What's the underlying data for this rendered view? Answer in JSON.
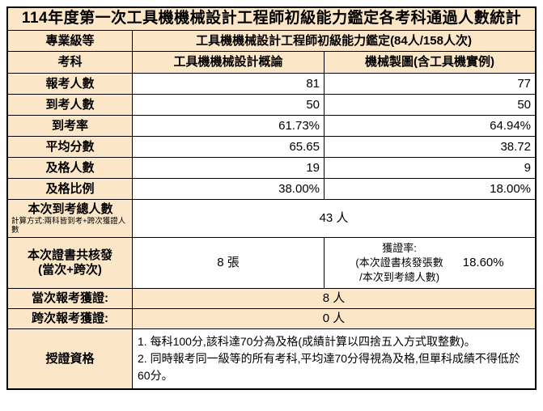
{
  "colors": {
    "header_fill": "#FCE6C8",
    "border": "#000000",
    "cell_fill": "#FFFFFF",
    "text": "#000000"
  },
  "title": "114年度第一次工具機機械設計工程師初級能力鑑定各考科通過人數統計",
  "level_row": {
    "label": "專業級等",
    "value": "工具機機械設計工程師初級能力鑑定(84人/158人次)"
  },
  "subject_row": {
    "label": "考科",
    "col1": "工具機機械設計概論",
    "col2": "機械製圖(含工具機實例)"
  },
  "stat_rows": [
    {
      "label": "報考人數",
      "col1": "81",
      "col2": "77"
    },
    {
      "label": "到考人數",
      "col1": "50",
      "col2": "50"
    },
    {
      "label": "到考率",
      "col1": "61.73%",
      "col2": "64.94%"
    },
    {
      "label": "平均分數",
      "col1": "65.65",
      "col2": "38.72"
    },
    {
      "label": "及格人數",
      "col1": "19",
      "col2": "9"
    },
    {
      "label": "及格比例",
      "col1": "38.00%",
      "col2": "18.00%"
    }
  ],
  "attend_total_row": {
    "label": "本次到考總人數",
    "note": "計算方式:兩科皆到考+跨次獲證人數",
    "value": "43 人"
  },
  "cert_row": {
    "label_line1": "本次證書共核發",
    "label_line2": "(當次+跨次)",
    "count": "8 張",
    "rate_lines": [
      "獲證率:",
      "(本次證書核發張數",
      "/本次到考總人數)"
    ],
    "rate_value": "18.60%"
  },
  "current_cert_row": {
    "label": "當次報考獲證:",
    "value": "8 人"
  },
  "cross_cert_row": {
    "label": "跨次報考獲證:",
    "value": "0 人"
  },
  "qualification_row": {
    "label": "授證資格",
    "lines": [
      "1. 每科100分,該科達70分為及格(成績計算以四捨五入方式取整數)。",
      "2. 同時報考同一級等的所有考科,平均達70分得視為及格,但單科成績不得低於60分。"
    ]
  },
  "chart_data": {
    "type": "table",
    "title": "114年度第一次工具機機械設計工程師初級能力鑑定各考科通過人數統計",
    "categories": [
      "工具機機械設計概論",
      "機械製圖(含工具機實例)"
    ],
    "series": [
      {
        "name": "報考人數",
        "values": [
          81,
          77
        ]
      },
      {
        "name": "到考人數",
        "values": [
          50,
          50
        ]
      },
      {
        "name": "到考率",
        "values": [
          "61.73%",
          "64.94%"
        ]
      },
      {
        "name": "平均分數",
        "values": [
          65.65,
          38.72
        ]
      },
      {
        "name": "及格人數",
        "values": [
          19,
          9
        ]
      },
      {
        "name": "及格比例",
        "values": [
          "38.00%",
          "18.00%"
        ]
      }
    ],
    "totals": {
      "本次到考總人數": "43 人",
      "本次證書共核發(當次+跨次)": "8 張",
      "獲證率": "18.60%",
      "當次報考獲證": "8 人",
      "跨次報考獲證": "0 人"
    }
  }
}
